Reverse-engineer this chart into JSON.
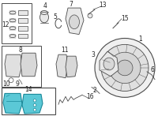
{
  "bg_color": "#ffffff",
  "highlight_color": "#5bc8d6",
  "line_color": "#4a4a4a",
  "num_color": "#222222",
  "font_size": 5.5
}
